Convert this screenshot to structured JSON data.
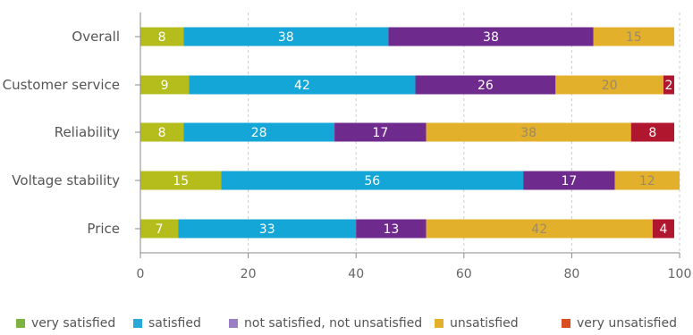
{
  "chart_data": {
    "type": "bar",
    "orientation": "horizontal",
    "stacked": true,
    "categories": [
      "Overall",
      "Customer service",
      "Reliability",
      "Voltage stability",
      "Price"
    ],
    "series": [
      {
        "name": "very satisfied",
        "color": "#b4bd1c",
        "label_color": "#ffffff",
        "values": [
          8,
          9,
          8,
          15,
          7
        ]
      },
      {
        "name": "satisfied",
        "color": "#14a6d6",
        "label_color": "#ffffff",
        "values": [
          38,
          42,
          28,
          56,
          33
        ]
      },
      {
        "name": "not satisfied, not unsatisfied",
        "color": "#6f2a8e",
        "label_color": "#ffffff",
        "values": [
          38,
          26,
          17,
          17,
          13
        ]
      },
      {
        "name": "unsatisfied",
        "color": "#e3b02c",
        "label_color": "#9a8a66",
        "values": [
          15,
          20,
          38,
          12,
          42
        ]
      },
      {
        "name": "very unsatisfied",
        "color": "#b0172e",
        "label_color": "#ffffff",
        "values": [
          0,
          2,
          8,
          0,
          4
        ]
      }
    ],
    "data_labels": [
      [
        "8",
        "9",
        "8",
        "15",
        "7"
      ],
      [
        "38",
        "42",
        "28",
        "56",
        "33"
      ],
      [
        "38",
        "26",
        "17",
        "17",
        "13"
      ],
      [
        "15",
        "20",
        "38",
        "12",
        "42"
      ],
      [
        "",
        "2",
        "8",
        "",
        "4"
      ]
    ],
    "xlim": [
      0,
      100
    ],
    "xticks": [
      0,
      20,
      40,
      60,
      80,
      100
    ],
    "xtick_labels": [
      "0",
      "20",
      "40",
      "60",
      "80",
      "100"
    ],
    "grid": "vertical dashed",
    "legend_position": "bottom",
    "legend_swatch_colors": [
      "#7cb342",
      "#29a8dc",
      "#9b7fc4",
      "#e3b02c",
      "#d84e1f"
    ]
  }
}
